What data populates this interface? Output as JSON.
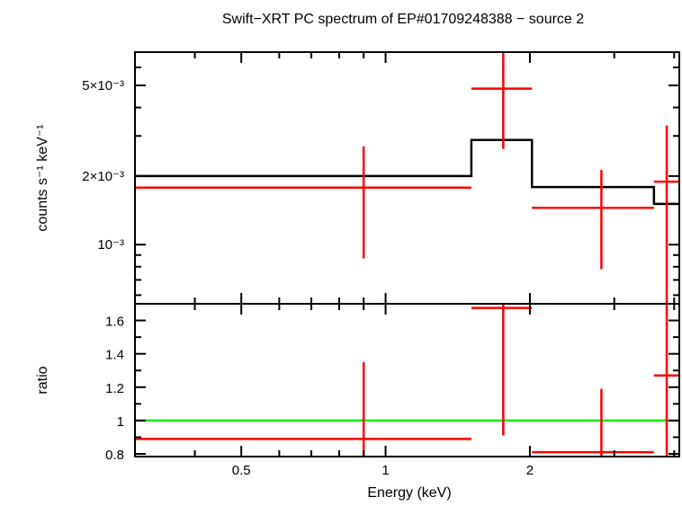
{
  "chart_data": [
    {
      "type": "scatter",
      "panel": "spectrum",
      "title": "Swift−XRT PC spectrum of EP#01709248388 − source 2",
      "xlabel": "Energy (keV)",
      "ylabel": "counts s⁻¹ keV⁻¹",
      "xscale": "log",
      "yscale": "log",
      "xlim": [
        0.3,
        4.1
      ],
      "ylim": [
        0.00055,
        0.007
      ],
      "ytick_labels": [
        {
          "value": 0.001,
          "label": "10⁻³"
        },
        {
          "value": 0.002,
          "label": "2×10⁻³"
        },
        {
          "value": 0.005,
          "label": "5×10⁻³"
        }
      ],
      "data_color": "#ff0000",
      "model_color": "#000000",
      "series": [
        {
          "kind": "data",
          "points": [
            {
              "x": 0.9,
              "xlo": 0.3,
              "xhi": 1.51,
              "y": 0.00178,
              "ylo": 0.00087,
              "yhi": 0.0027
            },
            {
              "x": 1.76,
              "xlo": 1.51,
              "xhi": 2.02,
              "y": 0.00484,
              "ylo": 0.00263,
              "yhi": 0.0072
            },
            {
              "x": 2.82,
              "xlo": 2.02,
              "xhi": 3.63,
              "y": 0.00145,
              "ylo": 0.00078,
              "yhi": 0.00213
            },
            {
              "x": 3.86,
              "xlo": 3.63,
              "xhi": 4.1,
              "y": 0.00189,
              "ylo": 0.0004,
              "yhi": 0.00333
            }
          ]
        },
        {
          "kind": "model",
          "steps": [
            {
              "xlo": 0.3,
              "xhi": 1.51,
              "y": 0.002
            },
            {
              "xlo": 1.51,
              "xhi": 2.02,
              "y": 0.00288
            },
            {
              "xlo": 2.02,
              "xhi": 3.63,
              "y": 0.00179
            },
            {
              "xlo": 3.63,
              "xhi": 4.1,
              "y": 0.00151
            }
          ]
        }
      ]
    },
    {
      "type": "scatter",
      "panel": "ratio",
      "xlabel": "Energy (keV)",
      "ylabel": "ratio",
      "xscale": "log",
      "xlim": [
        0.3,
        4.1
      ],
      "ylim": [
        0.784,
        1.7
      ],
      "xtick_labels": [
        {
          "value": 0.5,
          "label": "0.5"
        },
        {
          "value": 1,
          "label": "1"
        },
        {
          "value": 2,
          "label": "2"
        }
      ],
      "ytick_labels": [
        {
          "value": 0.8,
          "label": "0.8"
        },
        {
          "value": 1.0,
          "label": "1"
        },
        {
          "value": 1.2,
          "label": "1.2"
        },
        {
          "value": 1.4,
          "label": "1.4"
        },
        {
          "value": 1.6,
          "label": "1.6"
        }
      ],
      "reference_line": {
        "y": 1.0,
        "color": "#00ee00"
      },
      "data_color": "#ff0000",
      "points": [
        {
          "x": 0.9,
          "xlo": 0.3,
          "xhi": 1.51,
          "y": 0.89,
          "ylo": 0.7,
          "yhi": 1.35
        },
        {
          "x": 1.76,
          "xlo": 1.51,
          "xhi": 2.02,
          "y": 1.675,
          "ylo": 0.91,
          "yhi": 1.8
        },
        {
          "x": 2.82,
          "xlo": 2.02,
          "xhi": 3.63,
          "y": 0.81,
          "ylo": 0.7,
          "yhi": 1.19
        },
        {
          "x": 3.86,
          "xlo": 3.63,
          "xhi": 4.1,
          "y": 1.27,
          "ylo": 0.7,
          "yhi": 1.8
        }
      ]
    }
  ]
}
